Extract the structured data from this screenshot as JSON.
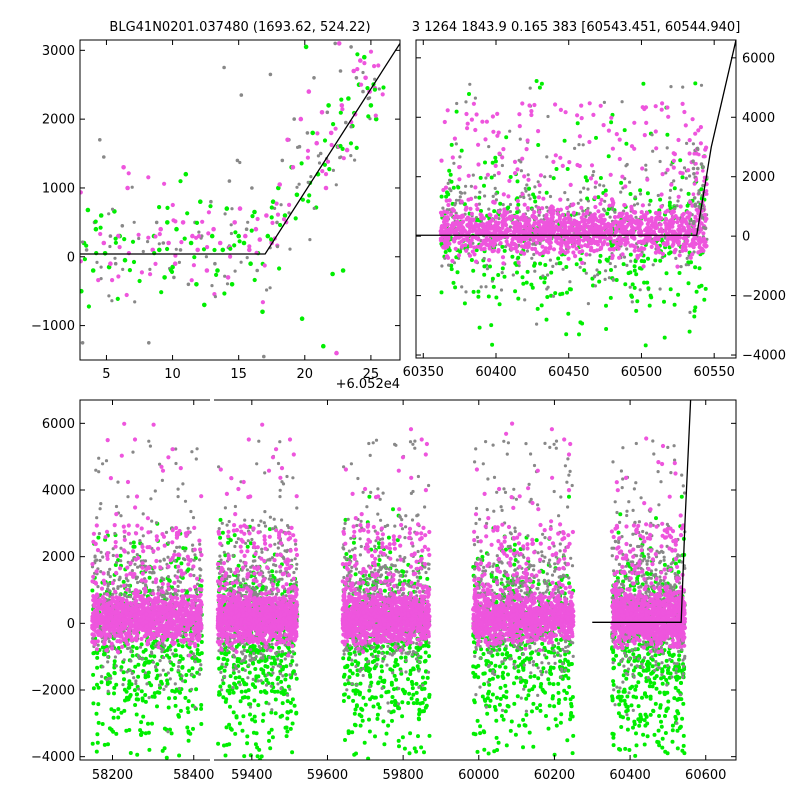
{
  "titles": {
    "left": "BLG41N0201.037480 (1693.62, 524.22)",
    "right": "3 1264 1843.9 0.165 383 [60543.451, 60544.940]"
  },
  "offset_label": "+6.052e4",
  "colors": {
    "green": "#00ee00",
    "gray": "#888888",
    "magenta": "#ee55dd",
    "model": "#000000"
  },
  "chart_data": [
    {
      "id": "top-left",
      "type": "scatter",
      "title": "BLG41N0201.037480 (1693.62, 524.22)",
      "xlim": [
        3,
        27.2
      ],
      "ylim": [
        -1500,
        3150
      ],
      "xticks": [
        5,
        10,
        15,
        20,
        25
      ],
      "xtick_labels": [
        "5",
        "10",
        "15",
        "20",
        "25"
      ],
      "yticks": [
        -1000,
        0,
        1000,
        2000,
        3000
      ],
      "ytick_labels": [
        "−1000",
        "0",
        "1000",
        "2000",
        "3000"
      ],
      "y_axis_side": "left",
      "x_offset_label": "+6.052e4",
      "model_line": {
        "x": [
          3,
          17,
          27.2
        ],
        "y": [
          40,
          40,
          3100
        ]
      },
      "series": [
        {
          "color": "green",
          "points": [
            [
              3.1,
              -500
            ],
            [
              3.3,
              200
            ],
            [
              3.6,
              680
            ],
            [
              4.0,
              -200
            ],
            [
              4.2,
              400
            ],
            [
              4.6,
              600
            ],
            [
              4.9,
              50
            ],
            [
              5.2,
              -150
            ],
            [
              5.6,
              660
            ],
            [
              6.0,
              300
            ],
            [
              6.4,
              -50
            ],
            [
              8.6,
              300
            ],
            [
              9.0,
              100
            ],
            [
              9.4,
              -300
            ],
            [
              9.6,
              500
            ],
            [
              10.0,
              -150
            ],
            [
              10.3,
              400
            ],
            [
              11.0,
              1200
            ],
            [
              11.4,
              200
            ],
            [
              11.8,
              -400
            ],
            [
              12.1,
              800
            ],
            [
              12.4,
              -700
            ],
            [
              13.0,
              300
            ],
            [
              13.4,
              -200
            ],
            [
              13.8,
              100
            ],
            [
              14.1,
              700
            ],
            [
              14.5,
              -400
            ],
            [
              15.0,
              300
            ],
            [
              15.4,
              200
            ],
            [
              15.9,
              -100
            ],
            [
              16.2,
              650
            ],
            [
              16.8,
              -800
            ],
            [
              17.2,
              300
            ],
            [
              17.6,
              800
            ],
            [
              18.0,
              1000
            ],
            [
              18.5,
              600
            ],
            [
              19.0,
              1300
            ],
            [
              19.4,
              900
            ],
            [
              19.8,
              -900
            ],
            [
              20.1,
              3050
            ],
            [
              20.6,
              1800
            ],
            [
              21.0,
              1200
            ],
            [
              21.4,
              -1300
            ],
            [
              21.8,
              2200
            ],
            [
              22.1,
              -250
            ],
            [
              22.5,
              1600
            ],
            [
              22.9,
              -200
            ],
            [
              23.3,
              2300
            ],
            [
              23.6,
              1900
            ],
            [
              24.1,
              2500
            ],
            [
              24.5,
              2900
            ],
            [
              25.0,
              2200
            ],
            [
              25.4,
              2000
            ]
          ]
        },
        {
          "color": "gray",
          "points": [
            [
              3.2,
              -1250
            ],
            [
              3.5,
              100
            ],
            [
              4.1,
              500
            ],
            [
              4.5,
              1700
            ],
            [
              4.8,
              1450
            ],
            [
              5.3,
              300
            ],
            [
              5.7,
              -100
            ],
            [
              6.2,
              450
            ],
            [
              8.2,
              -1250
            ],
            [
              8.8,
              500
            ],
            [
              9.3,
              200
            ],
            [
              10.1,
              -300
            ],
            [
              10.6,
              100
            ],
            [
              11.2,
              -400
            ],
            [
              11.7,
              500
            ],
            [
              12.2,
              300
            ],
            [
              12.9,
              800
            ],
            [
              13.2,
              -100
            ],
            [
              13.9,
              2750
            ],
            [
              14.3,
              1100
            ],
            [
              14.9,
              1400
            ],
            [
              15.2,
              2350
            ],
            [
              15.6,
              400
            ],
            [
              16.0,
              1000
            ],
            [
              16.4,
              -200
            ],
            [
              16.9,
              -1450
            ],
            [
              17.4,
              2650
            ],
            [
              17.9,
              500
            ],
            [
              18.3,
              1400
            ],
            [
              18.8,
              1700
            ],
            [
              19.2,
              2000
            ],
            [
              19.6,
              1600
            ],
            [
              20.2,
              1800
            ],
            [
              20.7,
              2600
            ],
            [
              21.2,
              1500
            ],
            [
              21.7,
              2100
            ],
            [
              22.3,
              3100
            ],
            [
              22.7,
              2700
            ],
            [
              23.1,
              1950
            ],
            [
              23.5,
              3050
            ],
            [
              23.9,
              2600
            ],
            [
              24.4,
              2400
            ],
            [
              24.8,
              2300
            ]
          ]
        },
        {
          "color": "magenta",
          "points": [
            [
              4.8,
              200
            ],
            [
              5.3,
              -100
            ],
            [
              5.9,
              300
            ],
            [
              6.3,
              1300
            ],
            [
              6.6,
              1000
            ],
            [
              8.5,
              100
            ],
            [
              9.1,
              400
            ],
            [
              9.7,
              200
            ],
            [
              10.2,
              -100
            ],
            [
              10.8,
              500
            ],
            [
              11.5,
              300
            ],
            [
              11.9,
              100
            ],
            [
              12.6,
              -200
            ],
            [
              13.1,
              400
            ],
            [
              13.6,
              200
            ],
            [
              14.2,
              -300
            ],
            [
              14.7,
              500
            ],
            [
              15.1,
              700
            ],
            [
              15.5,
              300
            ],
            [
              15.8,
              100
            ],
            [
              16.3,
              400
            ],
            [
              16.6,
              250
            ],
            [
              17.1,
              600
            ],
            [
              17.5,
              200
            ],
            [
              18.1,
              1050
            ],
            [
              18.7,
              1700
            ],
            [
              19.1,
              1300
            ],
            [
              19.7,
              2000
            ],
            [
              20.3,
              2400
            ],
            [
              20.9,
              1650
            ],
            [
              21.3,
              2100
            ],
            [
              21.6,
              1000
            ],
            [
              22.0,
              1800
            ],
            [
              22.4,
              -1400
            ],
            [
              22.8,
              2200
            ],
            [
              23.2,
              1550
            ],
            [
              23.7,
              2700
            ],
            [
              24.2,
              2850
            ],
            [
              24.6,
              2600
            ],
            [
              24.9,
              2400
            ],
            [
              25.3,
              2450
            ],
            [
              22.6,
              3100
            ]
          ]
        }
      ]
    },
    {
      "id": "top-right",
      "type": "scatter",
      "title": "3 1264 1843.9 0.165 383 [60543.451, 60544.940]",
      "xlim": [
        60345,
        60565
      ],
      "ylim": [
        -4100,
        6600
      ],
      "xticks": [
        60350,
        60400,
        60450,
        60500,
        60550
      ],
      "xtick_labels": [
        "60350",
        "60400",
        "60450",
        "60500",
        "60550"
      ],
      "yticks": [
        -4000,
        -2000,
        0,
        2000,
        4000,
        6000
      ],
      "ytick_labels": [
        "−4000",
        "−2000",
        "0",
        "2000",
        "4000",
        "6000"
      ],
      "y_axis_side": "right",
      "band": {
        "x": [
          60362,
          60545
        ],
        "clusters": [
          [
            60362,
            60544
          ]
        ]
      },
      "model_line": {
        "x": [
          60345,
          60538,
          60548,
          60565
        ],
        "y": [
          30,
          30,
          3000,
          6600
        ]
      }
    },
    {
      "id": "bottom",
      "type": "scatter",
      "xlim": [
        58120,
        60680
      ],
      "ylim": [
        -4100,
        6700
      ],
      "xticks": [
        58200,
        58400,
        59400,
        59600,
        59800,
        60000,
        60200,
        60400,
        60600
      ],
      "xtick_labels": [
        "58200",
        "58400",
        "59400",
        "59600",
        "59800",
        "60000",
        "60200",
        "60400",
        "60600"
      ],
      "yticks": [
        -4000,
        -2000,
        0,
        2000,
        4000,
        6000
      ],
      "ytick_labels": [
        "−4000",
        "−2000",
        "0",
        "2000",
        "4000",
        "6000"
      ],
      "y_axis_side": "left",
      "axis_break_after": 58440,
      "axis_break_gap_to": 59300,
      "seasons": [
        [
          58150,
          58420
        ],
        [
          59310,
          59520
        ],
        [
          59640,
          59870
        ],
        [
          59985,
          60250
        ],
        [
          60352,
          60545
        ]
      ],
      "model_line": {
        "x": [
          60300,
          60535,
          60545,
          60560
        ],
        "y": [
          30,
          30,
          3000,
          6700
        ]
      }
    }
  ]
}
